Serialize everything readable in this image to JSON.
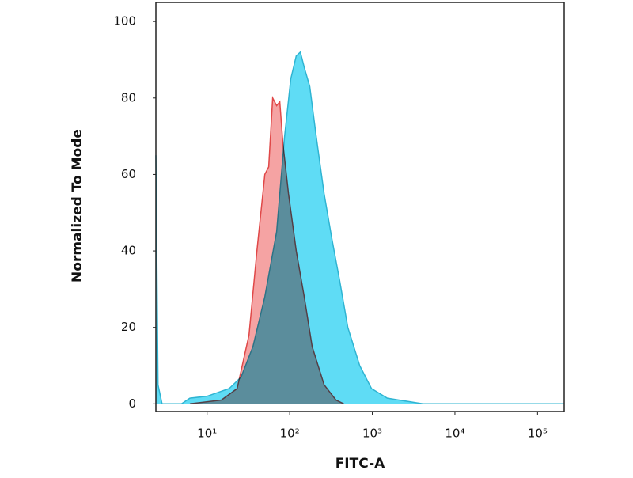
{
  "chart_data": {
    "type": "area",
    "xlabel": "FITC-A",
    "ylabel": "Normalized To Mode",
    "xscale": "log",
    "xlim": [
      2.4,
      210000
    ],
    "ylim": [
      -2,
      105
    ],
    "xticks": [
      {
        "value": 10,
        "label": "10¹"
      },
      {
        "value": 100,
        "label": "10²"
      },
      {
        "value": 1000,
        "label": "10³"
      },
      {
        "value": 10000,
        "label": "10⁴"
      },
      {
        "value": 100000,
        "label": "10⁵"
      }
    ],
    "yticks": [
      0,
      20,
      40,
      60,
      80,
      100
    ],
    "series": [
      {
        "color": "#5fdcf5",
        "edgecolor": "#2fb4d2",
        "x": [
          2.4,
          2.55,
          2.85,
          4.9,
          6.2,
          10,
          18.5,
          25.8,
          35.9,
          50,
          69.5,
          86.7,
          103,
          120,
          134.6,
          150,
          175,
          209,
          261,
          325,
          405,
          505,
          703,
          978,
          1520,
          2945,
          4090,
          210000
        ],
        "values": [
          65,
          5,
          0,
          0,
          1.5,
          2,
          4,
          7,
          15,
          28,
          45,
          70,
          85,
          91,
          92,
          88,
          83,
          70,
          55,
          43,
          32,
          20,
          10,
          4,
          1.5,
          0.5,
          0,
          0
        ]
      },
      {
        "color": "#f5a3a3",
        "edgecolor": "#e04848",
        "x": [
          6.2,
          14.9,
          23.1,
          32.2,
          40.1,
          50,
          55.7,
          62.2,
          69.5,
          75.9,
          82.9,
          96.8,
          120,
          150,
          187,
          261,
          363,
          452
        ],
        "values": [
          0,
          1,
          4,
          18,
          40,
          60,
          62,
          80,
          78,
          79,
          68,
          55,
          40,
          28,
          15,
          5,
          1,
          0
        ]
      }
    ]
  }
}
